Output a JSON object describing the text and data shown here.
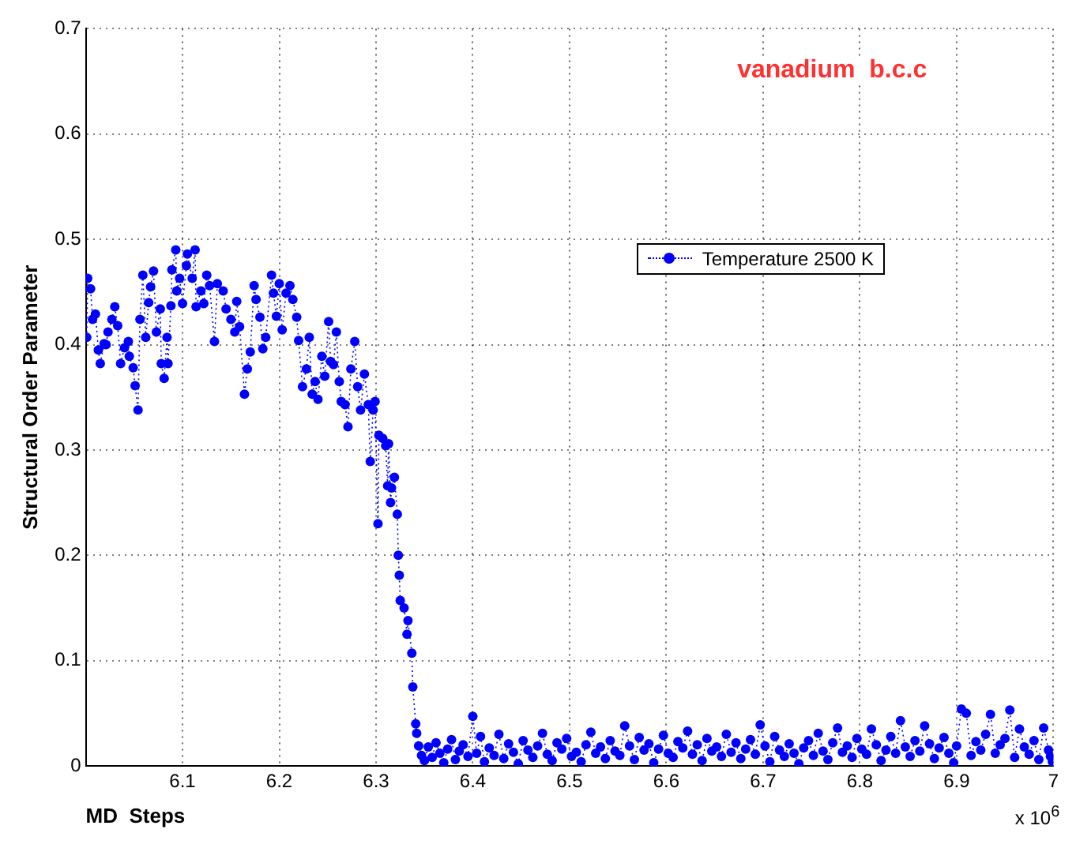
{
  "chart_data": {
    "type": "line",
    "xlabel": "MD  Steps",
    "ylabel": "Structural Order Parameter",
    "annotations": [
      "vanadium  b.c.c",
      "x 10$^{6}$"
    ],
    "xlim": [
      6.0,
      7.0
    ],
    "ylim": [
      0,
      0.7
    ],
    "xticks": [
      {
        "value": 6.0,
        "label": null
      },
      6.1,
      6.2,
      6.3,
      6.4,
      6.5,
      6.6,
      6.7,
      6.8,
      6.9,
      7
    ],
    "yticks": [
      0,
      0.1,
      0.2,
      0.3,
      0.4,
      0.5,
      0.6,
      0.7
    ],
    "grid": true,
    "legend": "top right",
    "marker": "circle",
    "line_style": "dotted",
    "series": [
      {
        "name": "Temperature 2500 K",
        "color": "#0000ff",
        "x": [
          6.001,
          6.002,
          6.005,
          6.007,
          6.01,
          6.013,
          6.015,
          6.019,
          6.021,
          6.023,
          6.027,
          6.03,
          6.033,
          6.036,
          6.04,
          6.044,
          6.045,
          6.049,
          6.051,
          6.054,
          6.056,
          6.059,
          6.062,
          6.065,
          6.067,
          6.07,
          6.073,
          6.077,
          6.078,
          6.081,
          6.084,
          6.085,
          6.088,
          6.089,
          6.093,
          6.094,
          6.097,
          6.1,
          6.104,
          6.105,
          6.11,
          6.113,
          6.114,
          6.119,
          6.122,
          6.125,
          6.128,
          6.133,
          6.136,
          6.142,
          6.145,
          6.15,
          6.154,
          6.156,
          6.159,
          6.164,
          6.167,
          6.17,
          6.174,
          6.176,
          6.18,
          6.183,
          6.186,
          6.192,
          6.194,
          6.197,
          6.2,
          6.203,
          6.207,
          6.211,
          6.214,
          6.218,
          6.22,
          6.224,
          6.228,
          6.231,
          6.234,
          6.237,
          6.24,
          6.244,
          6.247,
          6.251,
          6.253,
          6.256,
          6.259,
          6.262,
          6.264,
          6.268,
          6.271,
          6.274,
          6.278,
          6.281,
          6.284,
          6.288,
          6.292,
          6.294,
          6.297,
          6.299,
          6.302,
          6.303,
          6.307,
          6.31,
          6.312,
          6.313,
          6.315,
          6.316,
          6.319,
          6.322,
          6.323,
          6.324,
          6.325,
          6.329,
          6.332,
          6.333,
          6.337,
          6.338,
          6.341,
          6.342,
          6.344,
          6.347,
          6.35,
          6.354,
          6.358,
          6.362,
          6.366,
          6.37,
          6.374,
          6.378,
          6.382,
          6.386,
          6.39,
          6.395,
          6.4,
          6.404,
          6.408,
          6.412,
          6.417,
          6.422,
          6.427,
          6.432,
          6.437,
          6.442,
          6.447,
          6.452,
          6.457,
          6.462,
          6.467,
          6.472,
          6.477,
          6.482,
          6.487,
          6.492,
          6.497,
          6.502,
          6.507,
          6.512,
          6.517,
          6.522,
          6.527,
          6.532,
          6.537,
          6.542,
          6.547,
          6.552,
          6.557,
          6.562,
          6.567,
          6.572,
          6.577,
          6.582,
          6.587,
          6.592,
          6.597,
          6.602,
          6.607,
          6.612,
          6.617,
          6.622,
          6.627,
          6.632,
          6.637,
          6.642,
          6.647,
          6.652,
          6.657,
          6.662,
          6.667,
          6.672,
          6.677,
          6.682,
          6.687,
          6.692,
          6.697,
          6.702,
          6.707,
          6.712,
          6.717,
          6.722,
          6.727,
          6.732,
          6.737,
          6.742,
          6.747,
          6.752,
          6.757,
          6.762,
          6.767,
          6.772,
          6.777,
          6.782,
          6.787,
          6.792,
          6.797,
          6.802,
          6.807,
          6.812,
          6.817,
          6.822,
          6.827,
          6.832,
          6.837,
          6.842,
          6.847,
          6.852,
          6.857,
          6.862,
          6.867,
          6.872,
          6.877,
          6.882,
          6.887,
          6.892,
          6.897,
          6.9,
          6.905,
          6.91,
          6.915,
          6.92,
          6.925,
          6.93,
          6.935,
          6.94,
          6.945,
          6.95,
          6.955,
          6.96,
          6.965,
          6.97,
          6.975,
          6.98,
          6.985,
          6.99,
          6.995,
          6.997,
          6.999
        ],
        "values": [
          0.407,
          0.463,
          0.453,
          0.424,
          0.429,
          0.395,
          0.382,
          0.401,
          0.4,
          0.412,
          0.424,
          0.436,
          0.418,
          0.382,
          0.397,
          0.403,
          0.389,
          0.378,
          0.361,
          0.338,
          0.424,
          0.466,
          0.407,
          0.44,
          0.455,
          0.47,
          0.412,
          0.434,
          0.382,
          0.368,
          0.407,
          0.382,
          0.437,
          0.471,
          0.49,
          0.451,
          0.463,
          0.439,
          0.475,
          0.486,
          0.463,
          0.49,
          0.436,
          0.451,
          0.439,
          0.466,
          0.456,
          0.403,
          0.458,
          0.451,
          0.434,
          0.424,
          0.412,
          0.441,
          0.417,
          0.353,
          0.377,
          0.393,
          0.456,
          0.443,
          0.426,
          0.396,
          0.407,
          0.466,
          0.449,
          0.427,
          0.458,
          0.414,
          0.449,
          0.456,
          0.443,
          0.426,
          0.404,
          0.36,
          0.377,
          0.407,
          0.353,
          0.365,
          0.348,
          0.389,
          0.37,
          0.422,
          0.384,
          0.381,
          0.412,
          0.365,
          0.346,
          0.343,
          0.322,
          0.377,
          0.403,
          0.36,
          0.338,
          0.372,
          0.343,
          0.289,
          0.338,
          0.346,
          0.23,
          0.314,
          0.311,
          0.304,
          0.266,
          0.306,
          0.25,
          0.264,
          0.274,
          0.239,
          0.2,
          0.181,
          0.157,
          0.15,
          0.125,
          0.138,
          0.107,
          0.075,
          0.04,
          0.031,
          0.019,
          0.01,
          0.005,
          0.018,
          0.008,
          0.022,
          0.012,
          0.003,
          0.016,
          0.025,
          0.006,
          0.014,
          0.02,
          0.009,
          0.047,
          0.012,
          0.028,
          0.004,
          0.017,
          0.01,
          0.03,
          0.007,
          0.021,
          0.013,
          0.002,
          0.024,
          0.015,
          0.008,
          0.019,
          0.031,
          0.011,
          0.005,
          0.022,
          0.016,
          0.026,
          0.009,
          0.013,
          0.004,
          0.02,
          0.032,
          0.012,
          0.018,
          0.007,
          0.024,
          0.014,
          0.01,
          0.038,
          0.019,
          0.006,
          0.027,
          0.015,
          0.021,
          0.003,
          0.016,
          0.029,
          0.012,
          0.008,
          0.023,
          0.017,
          0.033,
          0.011,
          0.02,
          0.005,
          0.026,
          0.014,
          0.018,
          0.009,
          0.03,
          0.013,
          0.022,
          0.007,
          0.016,
          0.025,
          0.011,
          0.039,
          0.019,
          0.004,
          0.028,
          0.015,
          0.009,
          0.021,
          0.012,
          0.002,
          0.017,
          0.024,
          0.01,
          0.031,
          0.014,
          0.006,
          0.022,
          0.036,
          0.013,
          0.019,
          0.008,
          0.026,
          0.016,
          0.011,
          0.035,
          0.02,
          0.005,
          0.015,
          0.028,
          0.012,
          0.043,
          0.018,
          0.009,
          0.024,
          0.014,
          0.038,
          0.021,
          0.007,
          0.017,
          0.027,
          0.012,
          0.003,
          0.019,
          0.054,
          0.05,
          0.01,
          0.023,
          0.015,
          0.03,
          0.049,
          0.012,
          0.02,
          0.026,
          0.053,
          0.008,
          0.035,
          0.018,
          0.011,
          0.024,
          0.006,
          0.036,
          0.015,
          0.009,
          0.004
        ]
      }
    ]
  }
}
